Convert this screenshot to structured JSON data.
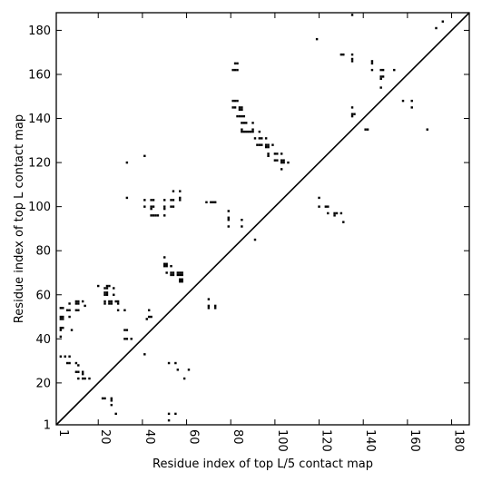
{
  "chart_data": {
    "type": "scatter",
    "title": "",
    "xlabel": "Residue index of top L/5 contact map",
    "ylabel": "Residue index of top L contact map",
    "xlim": [
      1,
      188
    ],
    "ylim": [
      1,
      188
    ],
    "xticks": [
      1,
      20,
      40,
      60,
      80,
      100,
      120,
      140,
      160,
      180
    ],
    "yticks": [
      1,
      20,
      40,
      60,
      80,
      100,
      120,
      140,
      160,
      180
    ],
    "grid": false,
    "legend": "none",
    "colors": {
      "points": "#000000",
      "diagonal": "#000000",
      "frame": "#000000"
    },
    "diagonal": [
      [
        1,
        1
      ],
      [
        188,
        188
      ]
    ],
    "series": [
      {
        "description": "upper triangle (top L contacts)",
        "points": [
          [
            82,
            165
          ],
          [
            83,
            165
          ],
          [
            81,
            162
          ],
          [
            82,
            162
          ],
          [
            83,
            162
          ],
          [
            81,
            148
          ],
          [
            82,
            148
          ],
          [
            83,
            148
          ],
          [
            81,
            145
          ],
          [
            82,
            145
          ],
          [
            84,
            145
          ],
          [
            85,
            145
          ],
          [
            84,
            144
          ],
          [
            85,
            144
          ],
          [
            83,
            141
          ],
          [
            84,
            141
          ],
          [
            85,
            141
          ],
          [
            86,
            141
          ],
          [
            85,
            138
          ],
          [
            86,
            138
          ],
          [
            87,
            138
          ],
          [
            90,
            138
          ],
          [
            85,
            135
          ],
          [
            85,
            134
          ],
          [
            86,
            134
          ],
          [
            87,
            134
          ],
          [
            88,
            134
          ],
          [
            89,
            134
          ],
          [
            90,
            134
          ],
          [
            90,
            135
          ],
          [
            93,
            134
          ],
          [
            91,
            131
          ],
          [
            93,
            131
          ],
          [
            94,
            131
          ],
          [
            96,
            131
          ],
          [
            92,
            128
          ],
          [
            93,
            128
          ],
          [
            94,
            128
          ],
          [
            96,
            128
          ],
          [
            97,
            128
          ],
          [
            96,
            127
          ],
          [
            97,
            127
          ],
          [
            99,
            128
          ],
          [
            97,
            124
          ],
          [
            97,
            123
          ],
          [
            100,
            124
          ],
          [
            101,
            124
          ],
          [
            103,
            124
          ],
          [
            100,
            121
          ],
          [
            101,
            121
          ],
          [
            103,
            121
          ],
          [
            104,
            121
          ],
          [
            103,
            120
          ],
          [
            104,
            120
          ],
          [
            106,
            120
          ],
          [
            103,
            117
          ],
          [
            33,
            120
          ],
          [
            41,
            123
          ],
          [
            33,
            104
          ],
          [
            57,
            104
          ],
          [
            57,
            103
          ],
          [
            41,
            103
          ],
          [
            44,
            103
          ],
          [
            45,
            103
          ],
          [
            50,
            103
          ],
          [
            53,
            103
          ],
          [
            54,
            103
          ],
          [
            44,
            100
          ],
          [
            41,
            100
          ],
          [
            45,
            100
          ],
          [
            50,
            100
          ],
          [
            53,
            100
          ],
          [
            54,
            100
          ],
          [
            44,
            99
          ],
          [
            50,
            99
          ],
          [
            44,
            96
          ],
          [
            45,
            96
          ],
          [
            46,
            96
          ],
          [
            47,
            96
          ],
          [
            50,
            96
          ],
          [
            54,
            107
          ],
          [
            57,
            107
          ],
          [
            69,
            102
          ],
          [
            71,
            102
          ],
          [
            72,
            102
          ],
          [
            73,
            102
          ],
          [
            79,
            98
          ],
          [
            79,
            95
          ],
          [
            79,
            94
          ],
          [
            79,
            91
          ],
          [
            85,
            94
          ],
          [
            85,
            91
          ],
          [
            91,
            85
          ],
          [
            50,
            77
          ],
          [
            50,
            74
          ],
          [
            51,
            74
          ],
          [
            50,
            73
          ],
          [
            51,
            73
          ],
          [
            53,
            73
          ],
          [
            51,
            70
          ],
          [
            53,
            70
          ],
          [
            54,
            70
          ],
          [
            56,
            70
          ],
          [
            57,
            70
          ],
          [
            58,
            70
          ],
          [
            53,
            69
          ],
          [
            54,
            69
          ],
          [
            56,
            69
          ],
          [
            57,
            69
          ],
          [
            58,
            69
          ],
          [
            57,
            67
          ],
          [
            58,
            67
          ],
          [
            57,
            66
          ],
          [
            58,
            66
          ],
          [
            70,
            58
          ],
          [
            70,
            55
          ],
          [
            70,
            54
          ],
          [
            73,
            54
          ],
          [
            73,
            55
          ],
          [
            41,
            33
          ],
          [
            43,
            53
          ],
          [
            43,
            50
          ],
          [
            44,
            50
          ],
          [
            42,
            49
          ],
          [
            35,
            40
          ],
          [
            32,
            40
          ],
          [
            33,
            40
          ],
          [
            32,
            44
          ],
          [
            33,
            44
          ]
        ]
      },
      {
        "description": "lower triangle (top L/5 contacts)",
        "points": [
          [
            135,
            187
          ],
          [
            173,
            181
          ],
          [
            176,
            184
          ],
          [
            119,
            176
          ],
          [
            130,
            169
          ],
          [
            131,
            169
          ],
          [
            135,
            169
          ],
          [
            135,
            167
          ],
          [
            135,
            166
          ],
          [
            144,
            166
          ],
          [
            144,
            165
          ],
          [
            148,
            162
          ],
          [
            149,
            162
          ],
          [
            154,
            162
          ],
          [
            144,
            162
          ],
          [
            148,
            159
          ],
          [
            149,
            159
          ],
          [
            148,
            158
          ],
          [
            148,
            154
          ],
          [
            158,
            148
          ],
          [
            162,
            148
          ],
          [
            162,
            145
          ],
          [
            135,
            145
          ],
          [
            135,
            142
          ],
          [
            136,
            142
          ],
          [
            135,
            141
          ],
          [
            141,
            135
          ],
          [
            142,
            135
          ],
          [
            169,
            135
          ],
          [
            120,
            104
          ],
          [
            120,
            100
          ],
          [
            123,
            100
          ],
          [
            124,
            100
          ],
          [
            124,
            97
          ],
          [
            127,
            97
          ],
          [
            128,
            97
          ],
          [
            127,
            96
          ],
          [
            130,
            97
          ],
          [
            131,
            93
          ]
        ]
      },
      {
        "description": "near-diagonal contacts (left of line)",
        "points": [
          [
            3,
            54
          ],
          [
            4,
            54
          ],
          [
            3,
            50
          ],
          [
            4,
            50
          ],
          [
            3,
            49
          ],
          [
            4,
            49
          ],
          [
            3,
            45
          ],
          [
            4,
            45
          ],
          [
            3,
            44
          ],
          [
            3,
            41
          ],
          [
            6,
            53
          ],
          [
            7,
            53
          ],
          [
            7,
            50
          ],
          [
            7,
            56
          ],
          [
            10,
            57
          ],
          [
            11,
            57
          ],
          [
            13,
            57
          ],
          [
            10,
            56
          ],
          [
            11,
            56
          ],
          [
            10,
            53
          ],
          [
            11,
            53
          ],
          [
            14,
            55
          ],
          [
            8,
            44
          ],
          [
            20,
            64
          ],
          [
            24,
            64
          ],
          [
            25,
            64
          ],
          [
            23,
            63
          ],
          [
            24,
            63
          ],
          [
            27,
            63
          ],
          [
            23,
            61
          ],
          [
            24,
            61
          ],
          [
            23,
            60
          ],
          [
            24,
            60
          ],
          [
            27,
            60
          ],
          [
            23,
            57
          ],
          [
            25,
            57
          ],
          [
            26,
            57
          ],
          [
            28,
            57
          ],
          [
            29,
            57
          ],
          [
            29,
            56
          ],
          [
            23,
            56
          ],
          [
            25,
            56
          ],
          [
            26,
            56
          ],
          [
            29,
            53
          ],
          [
            32,
            53
          ],
          [
            3,
            32
          ],
          [
            5,
            32
          ],
          [
            7,
            32
          ],
          [
            6,
            29
          ],
          [
            7,
            29
          ],
          [
            10,
            29
          ],
          [
            11,
            28
          ],
          [
            10,
            25
          ],
          [
            11,
            25
          ],
          [
            13,
            25
          ],
          [
            13,
            24
          ],
          [
            13,
            22
          ],
          [
            14,
            22
          ],
          [
            16,
            22
          ],
          [
            11,
            22
          ],
          [
            22,
            13
          ],
          [
            23,
            13
          ],
          [
            26,
            13
          ],
          [
            26,
            12
          ],
          [
            26,
            10
          ],
          [
            28,
            6
          ],
          [
            52,
            29
          ],
          [
            55,
            29
          ],
          [
            56,
            26
          ],
          [
            61,
            26
          ],
          [
            59,
            22
          ],
          [
            52,
            6
          ],
          [
            55,
            6
          ],
          [
            52,
            3
          ]
        ]
      }
    ]
  }
}
